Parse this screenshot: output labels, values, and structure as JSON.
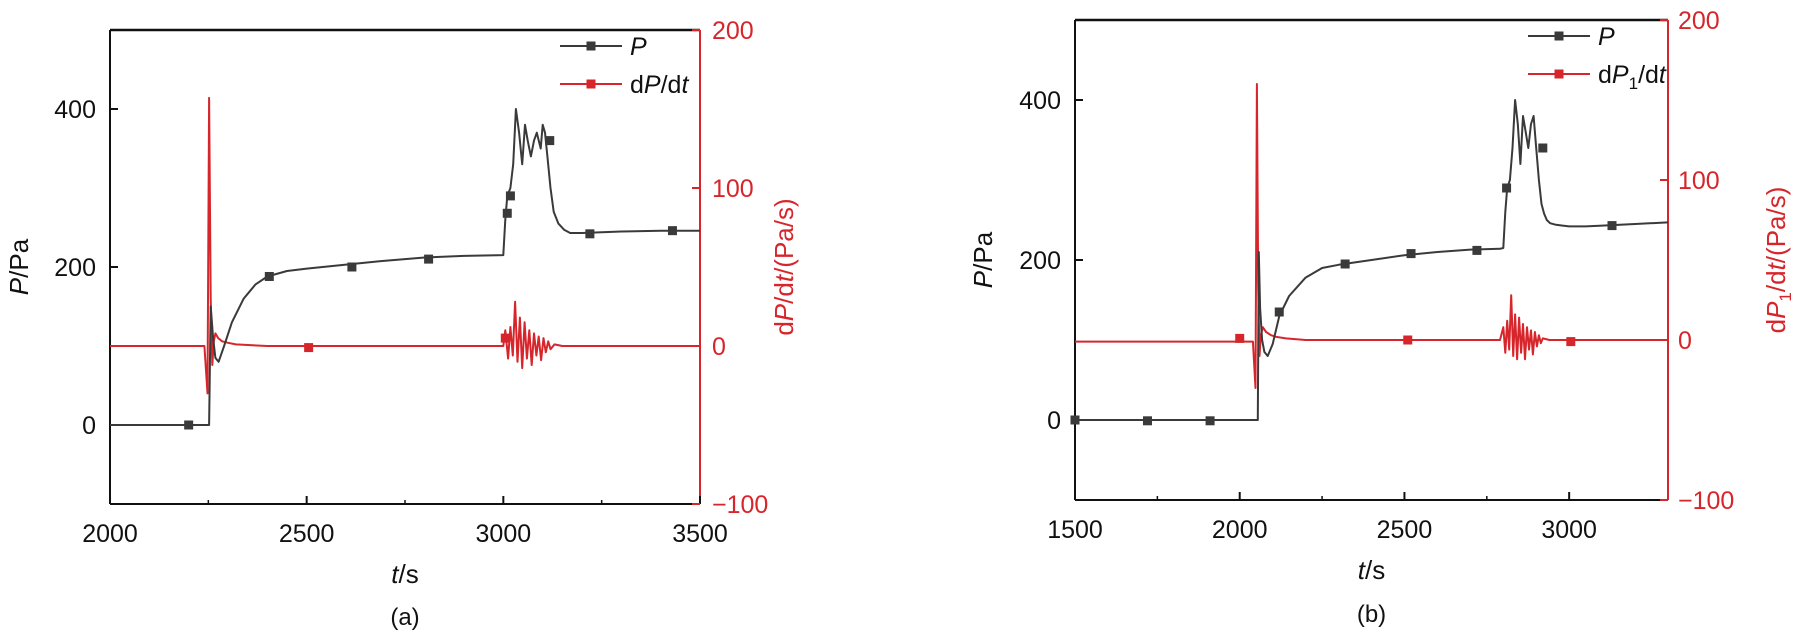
{
  "colors": {
    "pressure": "#3a3a3a",
    "derivative": "#d7262b",
    "axis": "#111111"
  },
  "chart_data": [
    {
      "type": "line",
      "panel_label": "(a)",
      "xlabel": {
        "italic": "t",
        "rest": "/s"
      },
      "ylabel_left": {
        "italic": "P",
        "rest": "/Pa"
      },
      "ylabel_right": {
        "pre": "d",
        "italic": "P",
        "mid": "/d",
        "italic2": "t",
        "rest": "/(Pa/s)"
      },
      "xlim": [
        2000,
        3500
      ],
      "ylim_left": [
        -100,
        500
      ],
      "ylim_right": [
        -100,
        200
      ],
      "xticks": [
        "2000",
        "2500",
        "3000",
        "3500"
      ],
      "yticks_left": [
        "0",
        "200",
        "400"
      ],
      "yticks_right": [
        "−100",
        "0",
        "100",
        "200"
      ],
      "legend_position": "top-right",
      "series": [
        {
          "name": "P",
          "axis": "left",
          "color": "#3a3a3a",
          "x": [
            2000,
            2200,
            2252,
            2256,
            2262,
            2268,
            2276,
            2290,
            2310,
            2340,
            2370,
            2400,
            2450,
            2500,
            2600,
            2700,
            2800,
            2900,
            3000,
            3005,
            3010,
            3018,
            3025,
            3032,
            3040,
            3048,
            3055,
            3062,
            3070,
            3078,
            3085,
            3095,
            3100,
            3106,
            3112,
            3120,
            3128,
            3140,
            3155,
            3170,
            3200,
            3300,
            3400,
            3500
          ],
          "y": [
            0,
            0,
            0,
            150,
            110,
            85,
            80,
            100,
            130,
            160,
            178,
            188,
            195,
            198,
            203,
            208,
            212,
            214,
            215,
            260,
            290,
            300,
            330,
            400,
            370,
            330,
            380,
            360,
            340,
            360,
            370,
            350,
            380,
            370,
            340,
            300,
            270,
            255,
            247,
            243,
            243,
            245,
            246,
            246
          ],
          "markers_x": [
            2200,
            2405,
            2615,
            2810,
            3010,
            3018,
            3118,
            3220,
            3430
          ],
          "markers_y": [
            0,
            188,
            200,
            210,
            268,
            290,
            360,
            242,
            246
          ]
        },
        {
          "name": "dP/dt",
          "axis": "right",
          "color": "#d7262b",
          "x": [
            2000,
            2240,
            2248,
            2252,
            2256,
            2260,
            2264,
            2268,
            2275,
            2285,
            2300,
            2320,
            2400,
            2500,
            2700,
            2900,
            3000,
            3005,
            3012,
            3018,
            3024,
            3030,
            3036,
            3042,
            3048,
            3054,
            3060,
            3066,
            3072,
            3078,
            3084,
            3090,
            3096,
            3102,
            3108,
            3114,
            3120,
            3130,
            3150,
            3200,
            3500
          ],
          "y": [
            0,
            0,
            -30,
            157,
            30,
            -12,
            3,
            8,
            5,
            3,
            2,
            1,
            0,
            0,
            0,
            0,
            0,
            10,
            -8,
            12,
            -6,
            28,
            -10,
            18,
            -14,
            15,
            -8,
            10,
            -12,
            8,
            -6,
            6,
            -9,
            5,
            -4,
            3,
            -2,
            1,
            0,
            0,
            0
          ],
          "markers_x": [
            2505,
            3005
          ],
          "markers_y": [
            -1,
            5
          ]
        }
      ]
    },
    {
      "type": "line",
      "panel_label": "(b)",
      "xlabel": {
        "italic": "t",
        "rest": "/s"
      },
      "ylabel_left": {
        "italic": "P",
        "rest": "/Pa"
      },
      "ylabel_right": {
        "pre": "d",
        "italic": "P",
        "sub": "1",
        "mid": "/d",
        "italic2": "t",
        "rest": "/(Pa/s)"
      },
      "xlim": [
        1500,
        3300
      ],
      "ylim_left": [
        -100,
        500
      ],
      "ylim_right": [
        -100,
        200
      ],
      "xticks": [
        "1500",
        "2000",
        "2500",
        "3000"
      ],
      "yticks_left": [
        "0",
        "200",
        "400"
      ],
      "yticks_right": [
        "−100",
        "0",
        "100",
        "200"
      ],
      "legend_position": "top-right",
      "series": [
        {
          "name": "P",
          "axis": "left",
          "color": "#3a3a3a",
          "x": [
            1500,
            2055,
            2058,
            2062,
            2068,
            2075,
            2085,
            2100,
            2120,
            2150,
            2200,
            2250,
            2300,
            2400,
            2500,
            2600,
            2700,
            2790,
            2800,
            2806,
            2812,
            2820,
            2828,
            2836,
            2844,
            2852,
            2860,
            2868,
            2876,
            2884,
            2892,
            2900,
            2908,
            2916,
            2924,
            2932,
            2942,
            2960,
            2980,
            3000,
            3050,
            3100,
            3200,
            3300
          ],
          "y": [
            0,
            0,
            210,
            140,
            100,
            85,
            80,
            95,
            130,
            155,
            178,
            190,
            194,
            200,
            206,
            210,
            213,
            214,
            215,
            260,
            290,
            300,
            340,
            400,
            370,
            320,
            380,
            360,
            340,
            370,
            380,
            340,
            300,
            270,
            258,
            250,
            246,
            244,
            243,
            242,
            242,
            243,
            245,
            247
          ],
          "markers_x": [
            1500,
            1720,
            1910,
            2120,
            2320,
            2520,
            2720,
            2810,
            2920,
            3130
          ],
          "markers_y": [
            0,
            -1,
            -1,
            135,
            195,
            208,
            212,
            290,
            340,
            243
          ]
        },
        {
          "name": "dP1/dt",
          "axis": "right",
          "color": "#d7262b",
          "x": [
            1500,
            2040,
            2048,
            2052,
            2056,
            2060,
            2064,
            2070,
            2080,
            2095,
            2110,
            2140,
            2200,
            2300,
            2500,
            2700,
            2790,
            2800,
            2806,
            2812,
            2818,
            2824,
            2830,
            2836,
            2842,
            2848,
            2854,
            2860,
            2866,
            2872,
            2878,
            2884,
            2890,
            2896,
            2902,
            2908,
            2914,
            2920,
            2940,
            3000,
            3300
          ],
          "y": [
            -1,
            -1,
            -30,
            160,
            35,
            -10,
            3,
            8,
            5,
            3,
            2,
            1,
            0,
            0,
            0,
            0,
            0,
            8,
            -8,
            12,
            -6,
            28,
            -10,
            16,
            -12,
            14,
            -8,
            10,
            -12,
            8,
            -6,
            6,
            -9,
            5,
            -4,
            3,
            -2,
            1,
            0,
            0,
            0
          ],
          "markers_x": [
            2000,
            2510,
            3005
          ],
          "markers_y": [
            1,
            0,
            -1
          ]
        }
      ]
    }
  ]
}
